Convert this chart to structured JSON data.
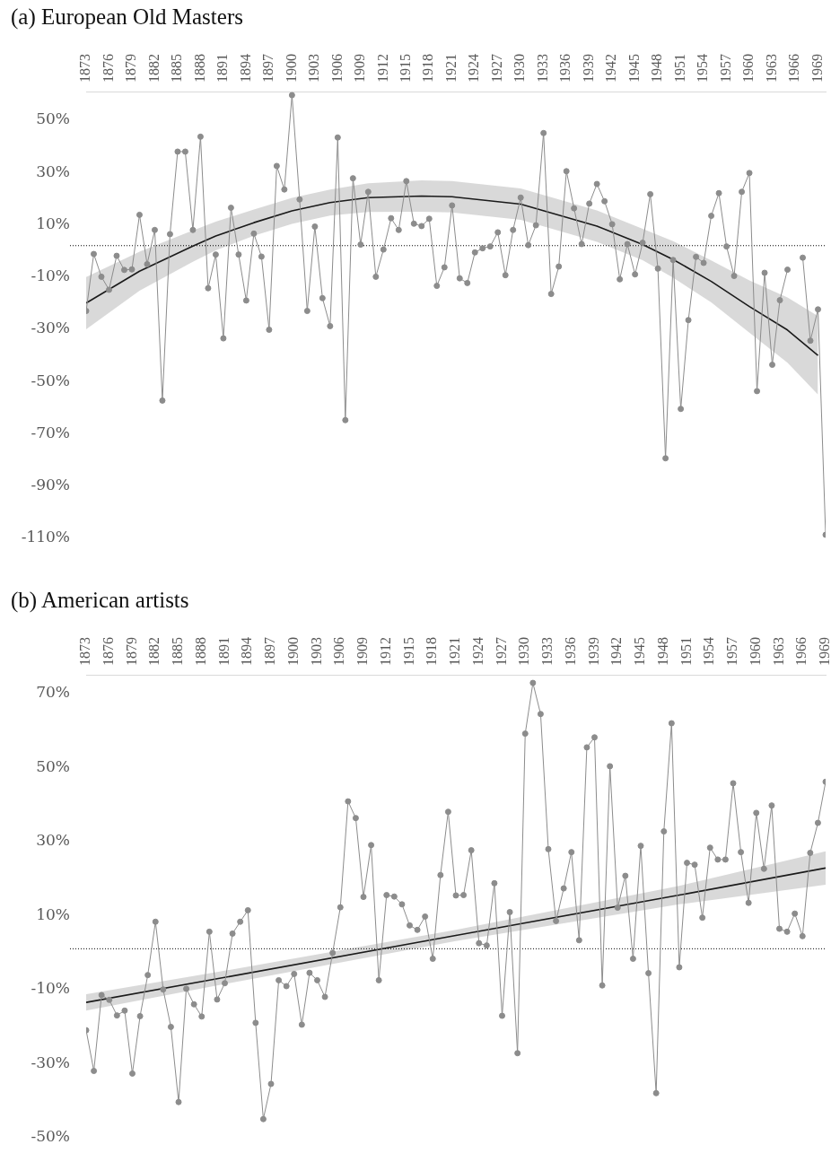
{
  "chart_data": [
    {
      "type": "line",
      "title": "(a) European Old Masters",
      "xlim": [
        1873,
        1970
      ],
      "ylim": [
        -110,
        61
      ],
      "xticks": [
        1873,
        1876,
        1879,
        1882,
        1885,
        1888,
        1891,
        1894,
        1897,
        1900,
        1903,
        1906,
        1909,
        1912,
        1915,
        1918,
        1921,
        1924,
        1927,
        1930,
        1933,
        1936,
        1939,
        1942,
        1945,
        1948,
        1951,
        1954,
        1957,
        1960,
        1963,
        1966,
        1969
      ],
      "yticks": [
        {
          "value": -110,
          "label": "-110%"
        },
        {
          "value": -90,
          "label": "-90%"
        },
        {
          "value": -70,
          "label": "-70%"
        },
        {
          "value": -50,
          "label": "-50%"
        },
        {
          "value": -30,
          "label": "-30%"
        },
        {
          "value": -10,
          "label": "-10%"
        },
        {
          "value": 10,
          "label": "10%"
        },
        {
          "value": 30,
          "label": "30%"
        },
        {
          "value": 50,
          "label": "50%"
        }
      ],
      "ref_lines": [
        {
          "axis": "y",
          "value": 2,
          "color": "#000000",
          "line_style": "dotted"
        }
      ],
      "x": [
        1873,
        1874,
        1875,
        1876,
        1877,
        1878,
        1879,
        1880,
        1881,
        1882,
        1883,
        1884,
        1885,
        1886,
        1887,
        1888,
        1889,
        1890,
        1891,
        1892,
        1893,
        1894,
        1895,
        1896,
        1897,
        1898,
        1899,
        1900,
        1901,
        1902,
        1903,
        1904,
        1905,
        1906,
        1907,
        1908,
        1909,
        1910,
        1911,
        1912,
        1913,
        1914,
        1915,
        1916,
        1917,
        1918,
        1919,
        1920,
        1921,
        1922,
        1923,
        1924,
        1925,
        1926,
        1927,
        1928,
        1929,
        1930,
        1931,
        1932,
        1933,
        1934,
        1935,
        1936,
        1937,
        1938,
        1939,
        1940,
        1941,
        1942,
        1943,
        1944,
        1945,
        1946,
        1947,
        1948,
        1949,
        1950,
        1951,
        1952,
        1953,
        1954,
        1955,
        1956,
        1957,
        1958,
        1959,
        1960,
        1961,
        1962,
        1963,
        1964,
        1965,
        1966,
        1967,
        1968,
        1969,
        1970
      ],
      "series": [
        {
          "color": "#8c8c8c",
          "marker": "circle",
          "values": [
            -23,
            -1.2,
            -9.9,
            -14.9,
            -1.9,
            -7.3,
            -7.1,
            13.8,
            -5.1,
            8,
            -57.3,
            6.4,
            38,
            38,
            8,
            43.7,
            -14.3,
            -1.4,
            -33.5,
            16.5,
            -1.4,
            -19,
            6.6,
            -2.2,
            -30.2,
            32.5,
            23.5,
            59.6,
            19.7,
            -23,
            9.3,
            -18.1,
            -28.8,
            43.4,
            -64.8,
            27.8,
            2.4,
            22.6,
            -9.9,
            0.5,
            12.5,
            8,
            26.7,
            10.4,
            9.5,
            12.3,
            -13.4,
            -6.3,
            17.4,
            -10.5,
            -12.3,
            -0.6,
            1,
            1.7,
            7.1,
            -9.3,
            8,
            20.4,
            2.2,
            9.8,
            45.1,
            -16.5,
            -6,
            30.5,
            16.3,
            2.6,
            18.1,
            25.6,
            19,
            10.2,
            -10.9,
            2.6,
            -9,
            3.1,
            21.7,
            -6.8,
            -79.4,
            -3.5,
            -60.5,
            -26.5,
            -2.3,
            -4.6,
            13.4,
            22.1,
            1.7,
            -9.6,
            22.6,
            29.8,
            -53.7,
            -8.4,
            -43.6,
            -18.9,
            -7.2,
            null,
            -2.6,
            -34.4,
            -22.4,
            -108.7
          ]
        },
        {
          "type": "line",
          "color": "#1a1a1a",
          "marker": "none",
          "x": [
            1873,
            1880,
            1887,
            1890,
            1895,
            1900,
            1905,
            1910,
            1917,
            1921,
            1930,
            1940,
            1946,
            1950,
            1955,
            1960,
            1965,
            1969
          ],
          "values": [
            -20,
            -7.8,
            1.8,
            5.7,
            10.8,
            15.3,
            18.5,
            20.4,
            21,
            20.7,
            17.9,
            9.5,
            2.4,
            -3.3,
            -11.7,
            -21.3,
            -30.3,
            -40
          ],
          "lower": [
            -30,
            -15.3,
            -4.2,
            0.2,
            5.8,
            10.3,
            13.5,
            14.9,
            15,
            14.7,
            11.9,
            3.5,
            -3.6,
            -10.3,
            -19.7,
            -31.3,
            -42.8,
            -55
          ],
          "upper": [
            -10,
            -0.3,
            7.8,
            11.2,
            15.8,
            20.3,
            23.5,
            25.9,
            27,
            26.7,
            23.9,
            15.5,
            8.4,
            3.7,
            -3.7,
            -11.3,
            -17.8,
            -25
          ]
        }
      ]
    },
    {
      "type": "line",
      "title": "(b) American artists",
      "xlim": [
        1873,
        1969
      ],
      "ylim": [
        -50,
        75
      ],
      "xticks": [
        1873,
        1876,
        1879,
        1882,
        1885,
        1888,
        1891,
        1894,
        1897,
        1900,
        1903,
        1906,
        1909,
        1912,
        1915,
        1918,
        1921,
        1924,
        1927,
        1930,
        1933,
        1936,
        1939,
        1942,
        1945,
        1948,
        1951,
        1954,
        1957,
        1960,
        1963,
        1966,
        1969
      ],
      "yticks": [
        {
          "value": -50,
          "label": "-50%"
        },
        {
          "value": -30,
          "label": "-30%"
        },
        {
          "value": -10,
          "label": "-10%"
        },
        {
          "value": 10,
          "label": "10%"
        },
        {
          "value": 30,
          "label": "30%"
        },
        {
          "value": 50,
          "label": "50%"
        },
        {
          "value": 70,
          "label": "70%"
        }
      ],
      "ref_lines": [
        {
          "axis": "y",
          "value": 1,
          "color": "#000000",
          "line_style": "dotted"
        }
      ],
      "x": [
        1873,
        1874,
        1875,
        1876,
        1877,
        1878,
        1879,
        1880,
        1881,
        1882,
        1883,
        1884,
        1885,
        1886,
        1887,
        1888,
        1889,
        1890,
        1891,
        1892,
        1893,
        1894,
        1895,
        1896,
        1897,
        1898,
        1899,
        1900,
        1901,
        1902,
        1903,
        1904,
        1905,
        1906,
        1907,
        1908,
        1909,
        1910,
        1911,
        1912,
        1913,
        1914,
        1915,
        1916,
        1917,
        1918,
        1919,
        1920,
        1921,
        1922,
        1923,
        1924,
        1925,
        1926,
        1927,
        1928,
        1929,
        1930,
        1931,
        1932,
        1933,
        1934,
        1935,
        1936,
        1937,
        1938,
        1939,
        1940,
        1941,
        1942,
        1943,
        1944,
        1945,
        1946,
        1947,
        1948,
        1949,
        1950,
        1951,
        1952,
        1953,
        1954,
        1955,
        1956,
        1957,
        1958,
        1959,
        1960,
        1961,
        1962,
        1963,
        1964,
        1965,
        1966,
        1967,
        1968,
        1969
      ],
      "series": [
        {
          "color": "#8c8c8c",
          "marker": "circle",
          "values": [
            -21,
            -32,
            -11.5,
            -12.8,
            -17,
            -15.7,
            -32.7,
            -17.2,
            -6.1,
            8.3,
            -10,
            -20.1,
            -40.4,
            -9.8,
            -14,
            -17.3,
            5.6,
            -12.7,
            -8.3,
            5.1,
            8.3,
            11.4,
            -19,
            -45,
            -35.5,
            -7.5,
            -9.1,
            -5.8,
            -19.5,
            -5.5,
            -7.5,
            -12,
            -0.1,
            12.2,
            40.8,
            36.3,
            15,
            29,
            -7.5,
            15.5,
            15.1,
            13,
            7.3,
            6.1,
            9.7,
            -1.7,
            20.9,
            38,
            15.4,
            15.5,
            27.6,
            2.5,
            1.9,
            18.7,
            -17.1,
            10.9,
            -27.2,
            59.1,
            72.8,
            64.4,
            27.9,
            8.5,
            17.3,
            27.1,
            3.3,
            55.4,
            58.1,
            -8.9,
            50.3,
            12.1,
            20.7,
            -1.7,
            28.8,
            -5.6,
            -38,
            32.7,
            61.9,
            -4,
            24.2,
            23.7,
            9.4,
            28.3,
            25.1,
            25.1,
            45.7,
            27.1,
            13.4,
            37.7,
            22.6,
            39.7,
            6.4,
            5.6,
            10.5,
            4.4,
            26.9,
            35,
            46.1
          ]
        },
        {
          "type": "line",
          "color": "#1a1a1a",
          "marker": "none",
          "x": [
            1873,
            1890,
            1921,
            1950,
            1969
          ],
          "values": [
            -13.5,
            -7.1,
            4.6,
            15.5,
            22.8
          ],
          "lower": [
            -15.7,
            -8.9,
            3.1,
            13,
            18.3
          ],
          "upper": [
            -11.3,
            -5.3,
            6.1,
            18,
            27.3
          ]
        }
      ]
    }
  ]
}
